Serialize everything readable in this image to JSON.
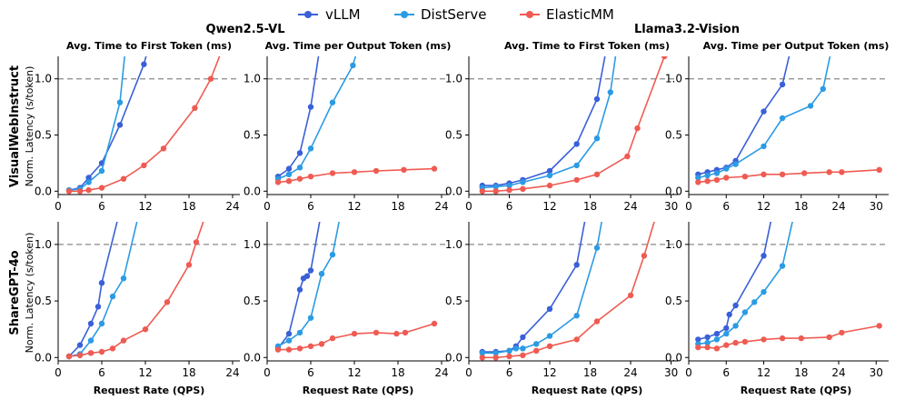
{
  "legend": [
    {
      "name": "vLLM",
      "color": "#3a60d8"
    },
    {
      "name": "DistServe",
      "color": "#2b9be4"
    },
    {
      "name": "ElasticMM",
      "color": "#ef5b52"
    }
  ],
  "models": [
    "Qwen2.5-VL",
    "Llama3.2-Vision"
  ],
  "datasets": [
    "VisualWebInstruct",
    "ShareGPT-4o"
  ],
  "metrics": [
    "Avg. Time to First Token (ms)",
    "Avg. Time per Output Token (ms)",
    "Avg. Time to First Token (ms)",
    "Avg. Time per Output Token (ms)"
  ],
  "ylabel": "Norm. Latency (s/token)",
  "xlabel": "Request Rate (QPS)",
  "chart_data": [
    {
      "type": "line",
      "model": "Qwen2.5-VL",
      "dataset": "VisualWebInstruct",
      "metric": "Avg. Time to First Token (ms)",
      "xlim": [
        0,
        25
      ],
      "xticks": [
        0,
        6,
        12,
        18,
        24
      ],
      "ylim": [
        -0.03,
        1.2
      ],
      "yticks": [
        0.0,
        0.5,
        1.0
      ],
      "reference_line": 1.0,
      "series": [
        {
          "name": "vLLM",
          "x": [
            1.5,
            3,
            4.2,
            6,
            8.5,
            11.8,
            12.5
          ],
          "y": [
            0.01,
            0.03,
            0.12,
            0.25,
            0.59,
            1.13,
            1.3
          ]
        },
        {
          "name": "DistServe",
          "x": [
            1.5,
            3,
            4.2,
            6,
            8.5,
            9.3
          ],
          "y": [
            0.01,
            0.02,
            0.08,
            0.18,
            0.79,
            1.3
          ]
        },
        {
          "name": "ElasticMM",
          "x": [
            1.5,
            3,
            4.2,
            6,
            9,
            11.8,
            14.5,
            18.8,
            21,
            22.5
          ],
          "y": [
            0.0,
            0.0,
            0.01,
            0.03,
            0.11,
            0.23,
            0.38,
            0.74,
            1.0,
            1.25
          ]
        }
      ]
    },
    {
      "type": "line",
      "model": "Qwen2.5-VL",
      "dataset": "VisualWebInstruct",
      "metric": "Avg. Time per Output Token (ms)",
      "xlim": [
        0,
        25
      ],
      "xticks": [
        0,
        6,
        12,
        18,
        24
      ],
      "ylim": [
        -0.03,
        1.2
      ],
      "yticks": [
        0.0,
        0.5,
        1.0
      ],
      "reference_line": 1.0,
      "series": [
        {
          "name": "vLLM",
          "x": [
            1.5,
            3,
            4.5,
            6,
            7.3
          ],
          "y": [
            0.13,
            0.2,
            0.34,
            0.75,
            1.3
          ]
        },
        {
          "name": "DistServe",
          "x": [
            1.5,
            3,
            4.5,
            6,
            9,
            11.8,
            12.6
          ],
          "y": [
            0.11,
            0.15,
            0.21,
            0.38,
            0.79,
            1.12,
            1.3
          ]
        },
        {
          "name": "ElasticMM",
          "x": [
            1.5,
            3,
            4.5,
            6,
            9,
            12,
            15,
            18.8,
            23
          ],
          "y": [
            0.08,
            0.09,
            0.11,
            0.13,
            0.16,
            0.17,
            0.18,
            0.19,
            0.2
          ]
        }
      ]
    },
    {
      "type": "line",
      "model": "Llama3.2-Vision",
      "dataset": "VisualWebInstruct",
      "metric": "Avg. Time to First Token (ms)",
      "xlim": [
        0,
        31
      ],
      "xticks": [
        0,
        6,
        12,
        18,
        24,
        30
      ],
      "ylim": [
        -0.03,
        1.2
      ],
      "yticks": [
        0.0,
        0.5,
        1.0
      ],
      "reference_line": 1.0,
      "series": [
        {
          "name": "vLLM",
          "x": [
            2,
            4,
            6,
            8,
            12,
            16,
            19,
            20.5
          ],
          "y": [
            0.05,
            0.05,
            0.07,
            0.1,
            0.18,
            0.42,
            0.82,
            1.3
          ]
        },
        {
          "name": "DistServe",
          "x": [
            2,
            4,
            6,
            8,
            12,
            16,
            19,
            21,
            22
          ],
          "y": [
            0.03,
            0.04,
            0.05,
            0.08,
            0.14,
            0.23,
            0.47,
            0.88,
            1.3
          ]
        },
        {
          "name": "ElasticMM",
          "x": [
            2,
            4,
            6,
            8,
            12,
            16,
            19,
            23.5,
            25,
            29
          ],
          "y": [
            0.0,
            0.0,
            0.01,
            0.02,
            0.05,
            0.1,
            0.15,
            0.31,
            0.56,
            1.2
          ]
        }
      ]
    },
    {
      "type": "line",
      "model": "Llama3.2-Vision",
      "dataset": "VisualWebInstruct",
      "metric": "Avg. Time per Output Token (ms)",
      "xlim": [
        0,
        32
      ],
      "xticks": [
        0,
        6,
        12,
        18,
        24,
        30
      ],
      "ylim": [
        -0.03,
        1.2
      ],
      "yticks": [
        0.0,
        0.5,
        1.0
      ],
      "reference_line": 1.0,
      "series": [
        {
          "name": "vLLM",
          "x": [
            1.5,
            3,
            4.5,
            6,
            7.5,
            12,
            15,
            16.5
          ],
          "y": [
            0.15,
            0.17,
            0.19,
            0.21,
            0.27,
            0.71,
            0.95,
            1.3
          ]
        },
        {
          "name": "DistServe",
          "x": [
            1.5,
            3,
            4.5,
            6,
            7.5,
            12,
            15,
            19.5,
            21.5,
            23
          ],
          "y": [
            0.12,
            0.14,
            0.16,
            0.2,
            0.24,
            0.4,
            0.65,
            0.76,
            0.91,
            1.3
          ]
        },
        {
          "name": "ElasticMM",
          "x": [
            1.5,
            3,
            4.5,
            6,
            9,
            12,
            15,
            18.5,
            22.5,
            24.5,
            30.5
          ],
          "y": [
            0.08,
            0.09,
            0.1,
            0.12,
            0.13,
            0.15,
            0.15,
            0.16,
            0.17,
            0.17,
            0.19
          ]
        }
      ]
    },
    {
      "type": "line",
      "model": "Qwen2.5-VL",
      "dataset": "ShareGPT-4o",
      "metric": "Avg. Time to First Token (ms)",
      "xlim": [
        0,
        25
      ],
      "xticks": [
        0,
        6,
        12,
        18,
        24
      ],
      "ylim": [
        -0.03,
        1.2
      ],
      "yticks": [
        0.0,
        0.5,
        1.0
      ],
      "reference_line": 1.0,
      "series": [
        {
          "name": "vLLM",
          "x": [
            1.5,
            3,
            4.5,
            5.5,
            6,
            8.5
          ],
          "y": [
            0.01,
            0.11,
            0.3,
            0.45,
            0.66,
            1.3
          ]
        },
        {
          "name": "DistServe",
          "x": [
            1.5,
            3,
            4.5,
            6,
            7.5,
            9,
            11.2
          ],
          "y": [
            0.01,
            0.03,
            0.15,
            0.3,
            0.54,
            0.7,
            1.3
          ]
        },
        {
          "name": "ElasticMM",
          "x": [
            1.5,
            3,
            4.5,
            6,
            7.5,
            9,
            12,
            15,
            18,
            19,
            20.5
          ],
          "y": [
            0.01,
            0.02,
            0.04,
            0.05,
            0.08,
            0.15,
            0.25,
            0.49,
            0.82,
            1.02,
            1.3
          ]
        }
      ]
    },
    {
      "type": "line",
      "model": "Qwen2.5-VL",
      "dataset": "ShareGPT-4o",
      "metric": "Avg. Time per Output Token (ms)",
      "xlim": [
        0,
        25
      ],
      "xticks": [
        0,
        6,
        12,
        18,
        24
      ],
      "ylim": [
        -0.03,
        1.2
      ],
      "yticks": [
        0.0,
        0.5,
        1.0
      ],
      "reference_line": 1.0,
      "series": [
        {
          "name": "vLLM",
          "x": [
            1.5,
            3,
            4.5,
            5,
            5.5,
            6,
            7.5
          ],
          "y": [
            0.08,
            0.21,
            0.6,
            0.7,
            0.72,
            0.77,
            1.3
          ]
        },
        {
          "name": "DistServe",
          "x": [
            1.5,
            3,
            4.5,
            6,
            7.5,
            9,
            10.2
          ],
          "y": [
            0.1,
            0.15,
            0.22,
            0.35,
            0.74,
            0.91,
            1.3
          ]
        },
        {
          "name": "ElasticMM",
          "x": [
            1.5,
            3,
            4.5,
            6,
            7.5,
            9,
            12,
            15,
            17.8,
            19,
            23
          ],
          "y": [
            0.07,
            0.07,
            0.08,
            0.1,
            0.12,
            0.17,
            0.21,
            0.22,
            0.21,
            0.22,
            0.3
          ]
        }
      ]
    },
    {
      "type": "line",
      "model": "Llama3.2-Vision",
      "dataset": "ShareGPT-4o",
      "metric": "Avg. Time to First Token (ms)",
      "xlim": [
        0,
        31
      ],
      "xticks": [
        0,
        6,
        12,
        18,
        24,
        30
      ],
      "ylim": [
        -0.03,
        1.2
      ],
      "yticks": [
        0.0,
        0.5,
        1.0
      ],
      "reference_line": 1.0,
      "series": [
        {
          "name": "vLLM",
          "x": [
            2,
            4,
            6,
            7,
            8,
            12,
            16,
            17.5
          ],
          "y": [
            0.05,
            0.05,
            0.06,
            0.1,
            0.18,
            0.43,
            0.82,
            1.3
          ]
        },
        {
          "name": "DistServe",
          "x": [
            2,
            4,
            6,
            7,
            8,
            10,
            12,
            16,
            19,
            20
          ],
          "y": [
            0.04,
            0.04,
            0.06,
            0.08,
            0.08,
            0.12,
            0.19,
            0.37,
            0.97,
            1.3
          ]
        },
        {
          "name": "ElasticMM",
          "x": [
            2,
            4,
            6,
            8,
            10,
            12,
            16,
            19,
            24,
            26,
            28
          ],
          "y": [
            0.0,
            0.0,
            0.01,
            0.02,
            0.06,
            0.1,
            0.16,
            0.32,
            0.55,
            0.9,
            1.3
          ]
        }
      ]
    },
    {
      "type": "line",
      "model": "Llama3.2-Vision",
      "dataset": "ShareGPT-4o",
      "metric": "Avg. Time per Output Token (ms)",
      "xlim": [
        0,
        32
      ],
      "xticks": [
        0,
        6,
        12,
        18,
        24,
        30
      ],
      "ylim": [
        -0.03,
        1.2
      ],
      "yticks": [
        0.0,
        0.5,
        1.0
      ],
      "reference_line": 1.0,
      "series": [
        {
          "name": "vLLM",
          "x": [
            1.5,
            3,
            4.5,
            6,
            6.5,
            7.5,
            12,
            13.5
          ],
          "y": [
            0.16,
            0.18,
            0.21,
            0.26,
            0.38,
            0.46,
            0.9,
            1.3
          ]
        },
        {
          "name": "DistServe",
          "x": [
            1.5,
            3,
            4.5,
            6,
            7.5,
            9,
            10.5,
            12,
            15,
            17
          ],
          "y": [
            0.12,
            0.13,
            0.16,
            0.21,
            0.28,
            0.4,
            0.49,
            0.58,
            0.81,
            1.3
          ]
        },
        {
          "name": "ElasticMM",
          "x": [
            1.5,
            3,
            4.5,
            6,
            7.5,
            9,
            12,
            15,
            18,
            22.5,
            24.5,
            30.5
          ],
          "y": [
            0.09,
            0.09,
            0.08,
            0.11,
            0.13,
            0.14,
            0.16,
            0.17,
            0.17,
            0.18,
            0.22,
            0.28
          ]
        }
      ]
    }
  ]
}
